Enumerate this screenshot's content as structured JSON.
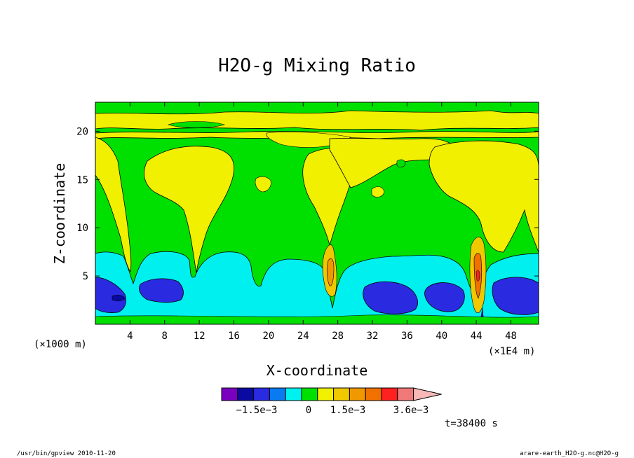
{
  "chart_data": {
    "type": "heatmap",
    "title": "H2O-g Mixing Ratio",
    "xlabel": "X-coordinate",
    "ylabel": "Z-coordinate",
    "x_unit_left": "(×1000 m)",
    "x_unit_right": "(×1E4 m)",
    "xlim": [
      0,
      51.2
    ],
    "ylim": [
      0,
      23
    ],
    "x_ticks": [
      "4",
      "8",
      "12",
      "16",
      "20",
      "24",
      "28",
      "32",
      "36",
      "40",
      "44",
      "48"
    ],
    "y_ticks": [
      "5",
      "10",
      "15",
      "20"
    ],
    "colorbar": {
      "colors": [
        "#7a00c0",
        "#0a0aa0",
        "#2a2ae0",
        "#0a7af0",
        "#00f0f0",
        "#00e000",
        "#f0f000",
        "#f0c800",
        "#f09800",
        "#f07000",
        "#ff2020",
        "#f07878",
        "#f8b8b8"
      ],
      "labels": [
        "−1.5e−3",
        "0",
        "1.5e−3",
        "3.6e−3"
      ]
    },
    "time_label": "t=38400 s",
    "footer_left": "/usr/bin/gpview   2010-11-20",
    "footer_right": "arare-earth_H2O-g.nc@H2O-g",
    "colors": {
      "green": "#00e000",
      "yellow": "#f0f000",
      "cyan": "#00f0f0",
      "blue": "#2a2ae0",
      "navy": "#0a0aa0",
      "orange": "#f09800",
      "dark_orange": "#f07000",
      "red": "#ff2020"
    }
  }
}
